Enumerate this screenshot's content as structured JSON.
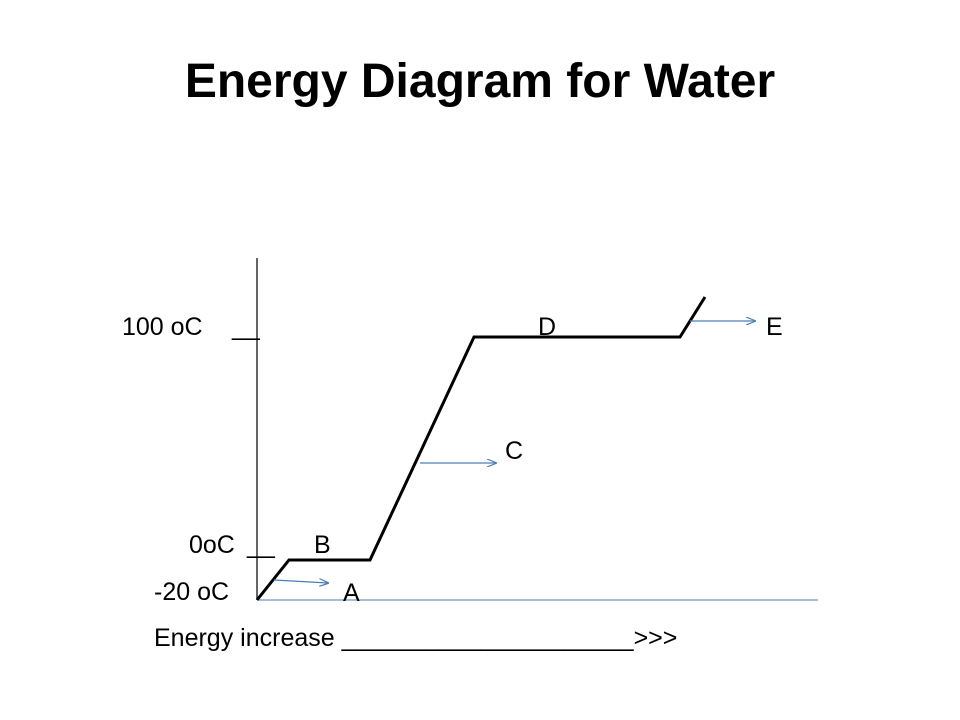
{
  "title": "Energy Diagram for Water",
  "axis": {
    "tick_100": "100 oC",
    "tick_100_mark": "__",
    "tick_0": "0oC",
    "tick_0_mark": "__",
    "tick_neg20": "-20 oC",
    "x_label": "Energy increase _____________________>>>"
  },
  "segments": {
    "A": "A",
    "B": "B",
    "C": "C",
    "D": "D",
    "E": "E"
  },
  "colors": {
    "curve": "#000000",
    "axis": "#000000",
    "arrow": "#4a7ebb",
    "baseline": "#4a7ebb"
  }
}
